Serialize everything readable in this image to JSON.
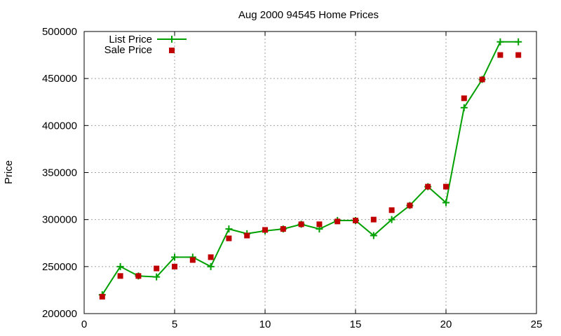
{
  "chart_data": {
    "type": "line",
    "title": "Aug 2000 94545 Home Prices",
    "xlabel": "",
    "ylabel": "Price",
    "xlim": [
      0,
      25
    ],
    "ylim": [
      200000,
      500000
    ],
    "xticks": [
      0,
      5,
      10,
      15,
      20,
      25
    ],
    "yticks": [
      200000,
      250000,
      300000,
      350000,
      400000,
      450000,
      500000
    ],
    "grid": true,
    "legend_position": "top-left",
    "colors": {
      "list": "#00a000",
      "sale": "#c00000"
    },
    "series": [
      {
        "name": "List Price",
        "style": "linespoints",
        "points": [
          [
            1,
            220000
          ],
          [
            2,
            250000
          ],
          [
            3,
            240000
          ],
          [
            4,
            239000
          ],
          [
            5,
            260000
          ],
          [
            6,
            260000
          ],
          [
            7,
            250000
          ],
          [
            8,
            290000
          ],
          [
            9,
            285000
          ],
          [
            10,
            288000
          ],
          [
            11,
            290000
          ],
          [
            12,
            295000
          ],
          [
            13,
            290000
          ],
          [
            14,
            299000
          ],
          [
            15,
            299000
          ],
          [
            16,
            283000
          ],
          [
            17,
            300000
          ],
          [
            18,
            315000
          ],
          [
            19,
            335000
          ],
          [
            20,
            318000
          ],
          [
            21,
            419000
          ],
          [
            22,
            449000
          ],
          [
            23,
            489000
          ],
          [
            24,
            489000
          ]
        ]
      },
      {
        "name": "Sale Price",
        "style": "points",
        "points": [
          [
            1,
            218000
          ],
          [
            2,
            240000
          ],
          [
            3,
            240000
          ],
          [
            4,
            248000
          ],
          [
            5,
            250000
          ],
          [
            6,
            257000
          ],
          [
            7,
            260000
          ],
          [
            8,
            280000
          ],
          [
            9,
            283000
          ],
          [
            10,
            289000
          ],
          [
            11,
            290000
          ],
          [
            12,
            295000
          ],
          [
            13,
            295000
          ],
          [
            14,
            298000
          ],
          [
            15,
            299000
          ],
          [
            16,
            300000
          ],
          [
            17,
            310000
          ],
          [
            18,
            315000
          ],
          [
            19,
            335000
          ],
          [
            20,
            335000
          ],
          [
            21,
            429000
          ],
          [
            22,
            449000
          ],
          [
            23,
            475000
          ],
          [
            24,
            475000
          ]
        ]
      }
    ]
  }
}
